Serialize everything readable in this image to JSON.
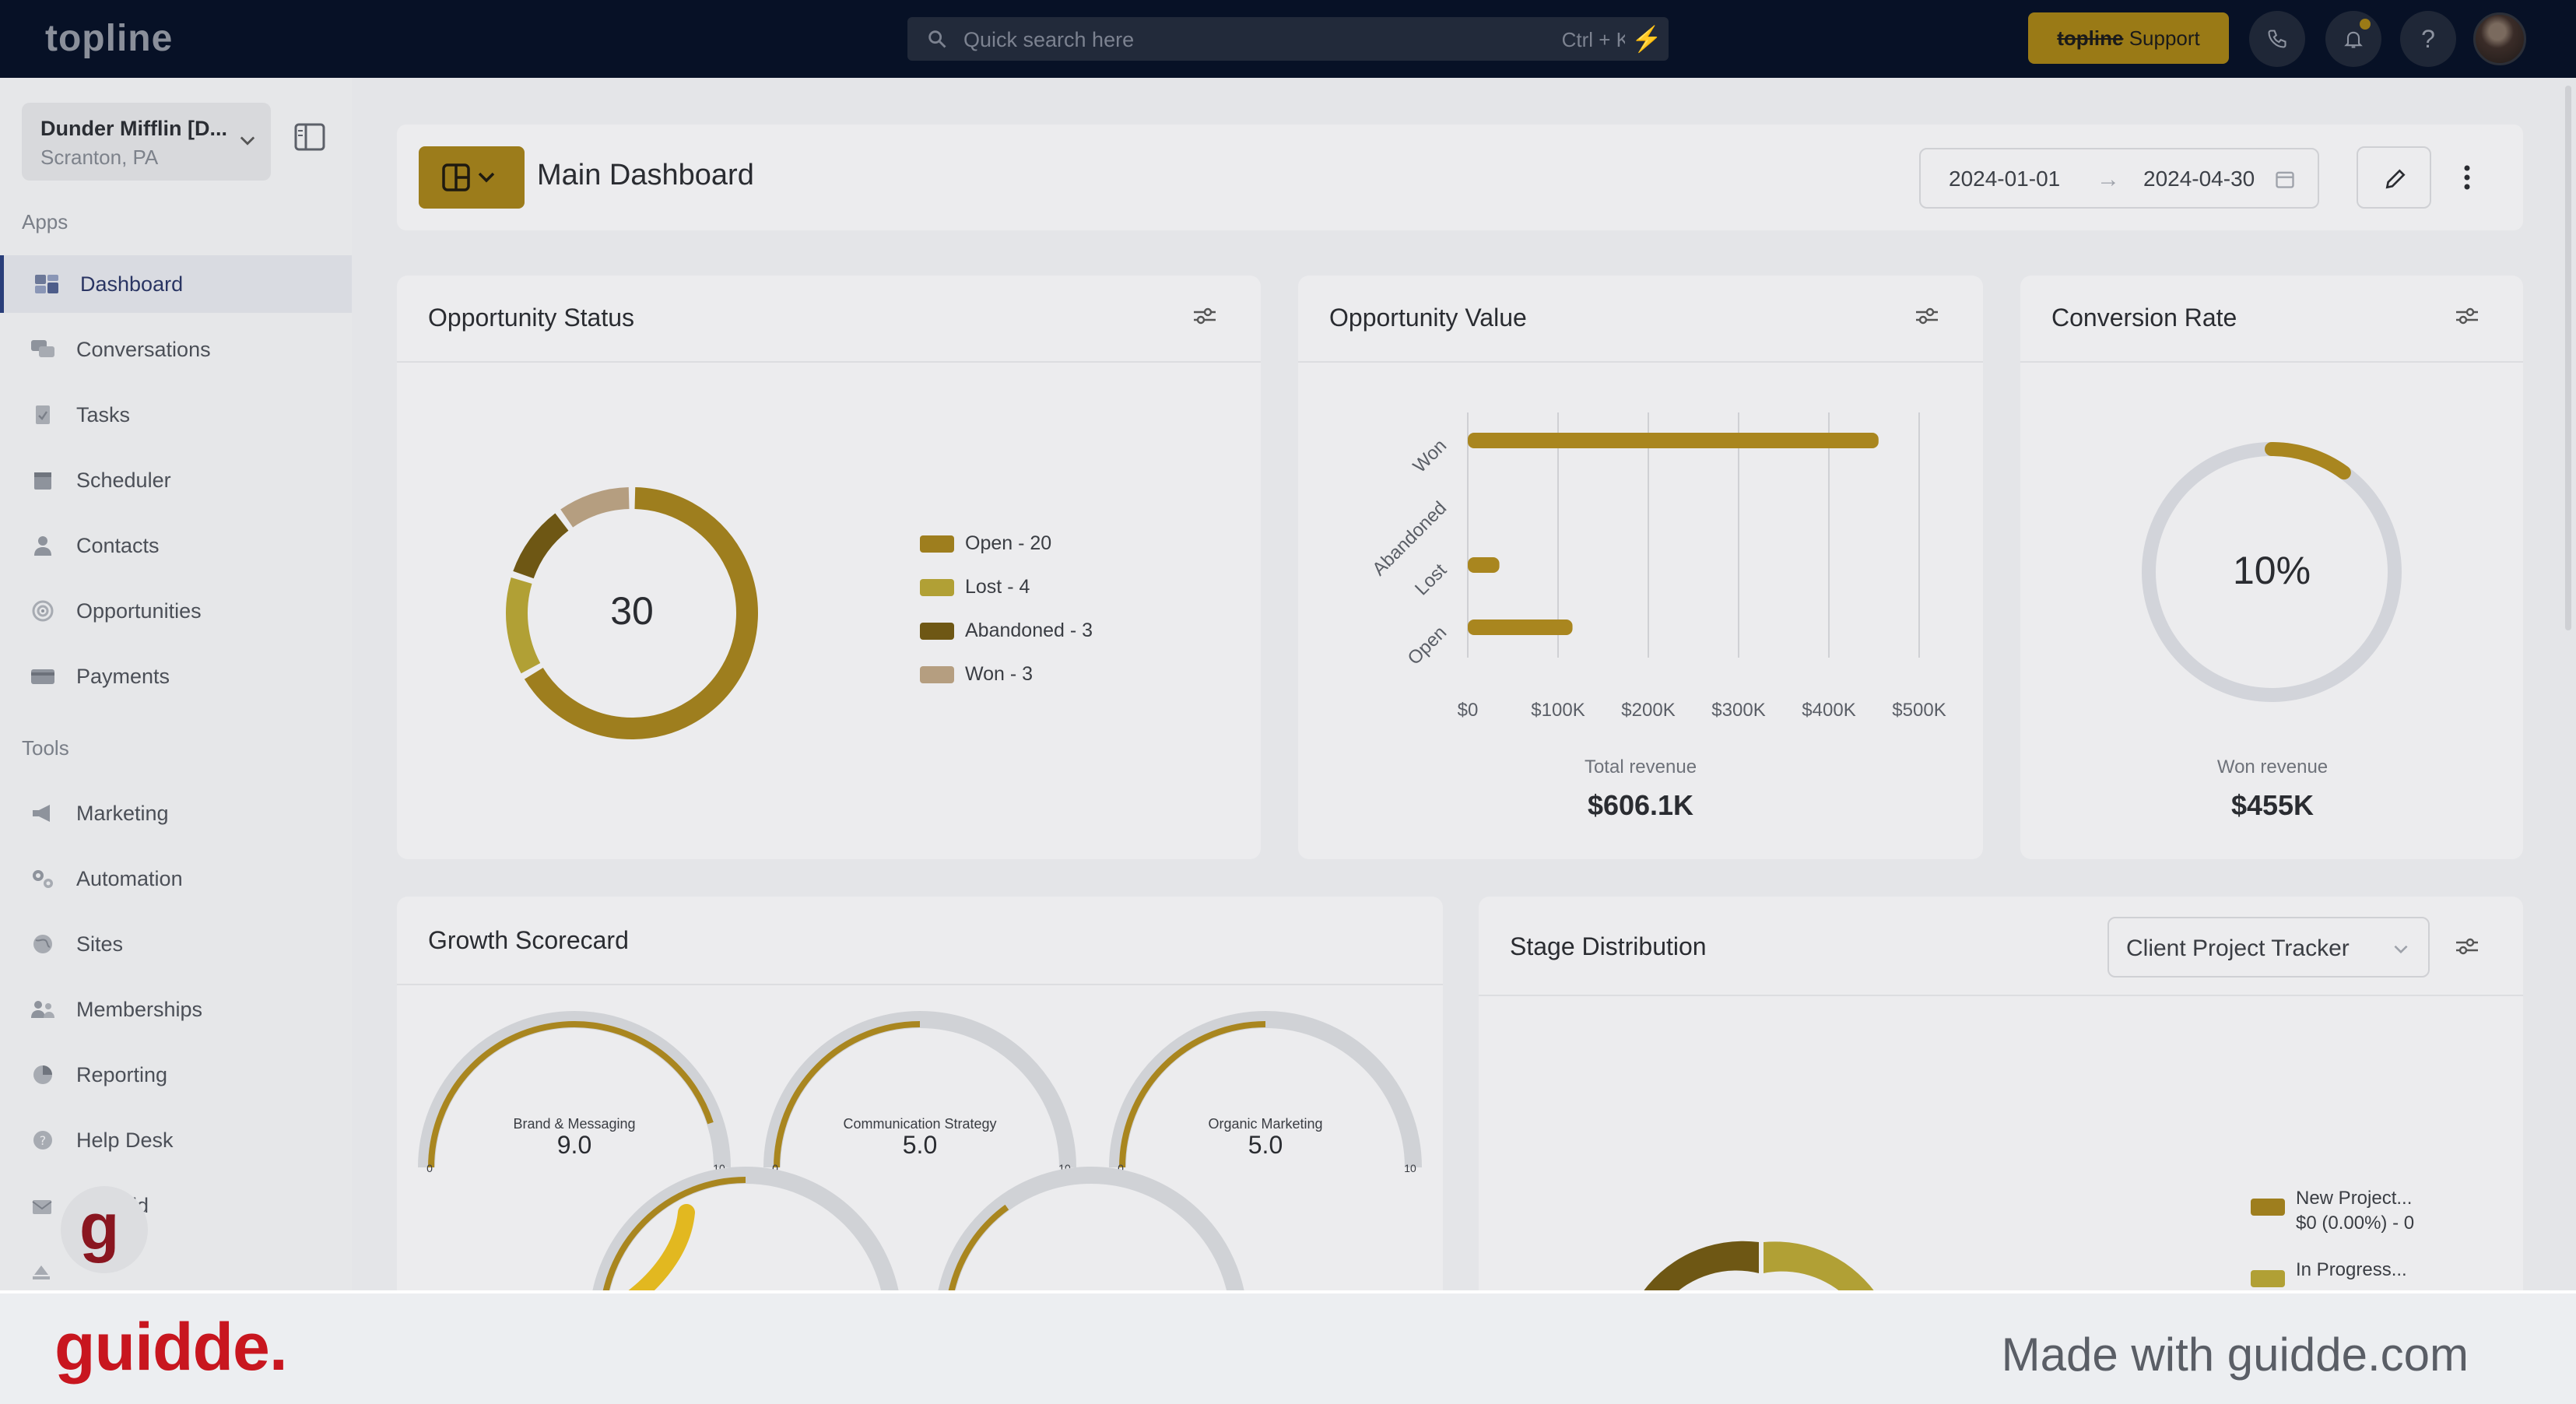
{
  "topbar": {
    "brand": "topline",
    "search_placeholder": "Quick search here",
    "search_shortcut": "Ctrl + K",
    "support_brand": "topline",
    "support_label": "Support",
    "help_label": "?"
  },
  "sidebar": {
    "location_name": "Dunder Mifflin [D...",
    "location_city": "Scranton, PA",
    "apps_title": "Apps",
    "tools_title": "Tools",
    "apps": [
      {
        "label": "Dashboard",
        "icon": "dashboard-icon",
        "active": true
      },
      {
        "label": "Conversations",
        "icon": "chat-icon"
      },
      {
        "label": "Tasks",
        "icon": "clipboard-icon"
      },
      {
        "label": "Scheduler",
        "icon": "calendar-icon"
      },
      {
        "label": "Contacts",
        "icon": "person-icon"
      },
      {
        "label": "Opportunities",
        "icon": "target-icon"
      },
      {
        "label": "Payments",
        "icon": "credit-card-icon"
      }
    ],
    "tools": [
      {
        "label": "Marketing",
        "icon": "megaphone-icon"
      },
      {
        "label": "Automation",
        "icon": "gears-icon"
      },
      {
        "label": "Sites",
        "icon": "globe-icon"
      },
      {
        "label": "Memberships",
        "icon": "people-icon"
      },
      {
        "label": "Reporting",
        "icon": "pie-chart-icon"
      },
      {
        "label": "Help Desk",
        "icon": "help-circle-icon"
      },
      {
        "label": "Mailfold",
        "icon": "mail-icon"
      }
    ],
    "guidde_letter": "g"
  },
  "header": {
    "title": "Main Dashboard",
    "date_start": "2024-01-01",
    "date_arrow": "→",
    "date_end": "2024-04-30"
  },
  "opportunity_status": {
    "title": "Opportunity Status",
    "total": "30",
    "legend": [
      {
        "label": "Open - 20",
        "color": "#9e7e1e"
      },
      {
        "label": "Lost - 4",
        "color": "#b1a035"
      },
      {
        "label": "Abandoned - 3",
        "color": "#6e5714"
      },
      {
        "label": "Won - 3",
        "color": "#b59e80"
      }
    ]
  },
  "opportunity_value": {
    "title": "Opportunity Value",
    "total_label": "Total revenue",
    "total_value": "$606.1K"
  },
  "conversion_rate": {
    "title": "Conversion Rate",
    "rate_text": "10%",
    "rate": 0.1,
    "won_label": "Won revenue",
    "won_value": "$455K"
  },
  "growth_scorecard": {
    "title": "Growth Scorecard",
    "min_label": "0",
    "max_label": "10",
    "gauges": [
      {
        "label": "Brand & Messaging",
        "value": "9.0",
        "score": 9
      },
      {
        "label": "Communication Strategy",
        "value": "5.0",
        "score": 5
      },
      {
        "label": "Organic Marketing",
        "value": "5.0",
        "score": 5
      }
    ]
  },
  "stage_distribution": {
    "title": "Stage Distribution",
    "pipeline": "Client Project Tracker",
    "legend": [
      {
        "line1": "New Project...",
        "line2": "$0 (0.00%) - 0",
        "color": "#9e7e1e"
      },
      {
        "line1": "In Progress...",
        "line2": "",
        "color": "#b1a035"
      }
    ]
  },
  "chart_data": [
    {
      "type": "pie",
      "title": "Opportunity Status",
      "categories": [
        "Open",
        "Lost",
        "Abandoned",
        "Won"
      ],
      "values": [
        20,
        4,
        3,
        3
      ]
    },
    {
      "type": "bar",
      "title": "Opportunity Value",
      "categories": [
        "Won",
        "Abandoned",
        "Lost",
        "Open"
      ],
      "values": [
        455000,
        0,
        35000,
        116000
      ],
      "xlim": [
        0,
        500000
      ],
      "x_ticks": [
        "$0",
        "$100K",
        "$200K",
        "$300K",
        "$400K",
        "$500K"
      ]
    }
  ],
  "footer": {
    "logo": "guidde.",
    "made_with": "Made with guidde.com"
  },
  "colors": {
    "accent": "#9c7c1b",
    "topbar": "#071126"
  }
}
